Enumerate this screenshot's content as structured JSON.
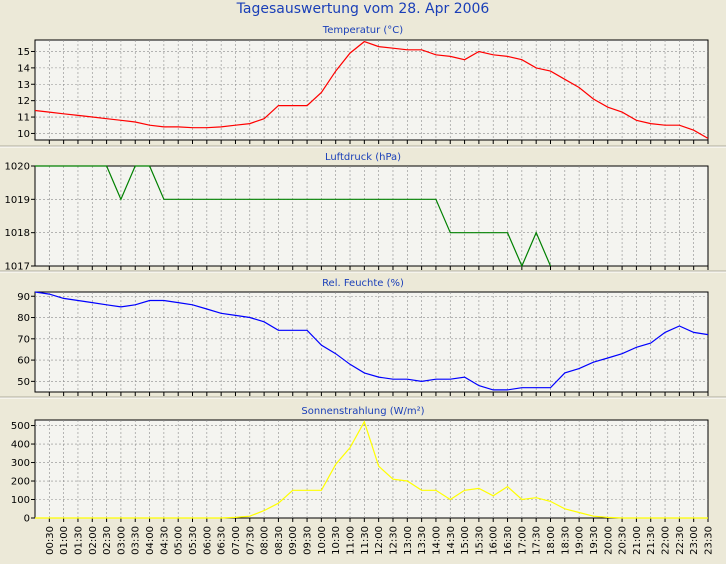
{
  "page": {
    "title": "Tagesauswertung vom 28. Apr 2006"
  },
  "colors": {
    "background": "#ece9d8",
    "plot_background": "#f4f4f0",
    "grid": "#8c8c8c",
    "title_blue": "#1a3fb8",
    "temperature": "#ff0000",
    "pressure": "#008000",
    "humidity": "#0000ff",
    "radiation": "#ffff00"
  },
  "chart_data": [
    {
      "type": "line",
      "title": "Temperatur (°C)",
      "x_ticks": [
        "00:30",
        "01:00",
        "01:30",
        "02:00",
        "02:30",
        "03:00",
        "03:30",
        "04:00",
        "04:30",
        "05:00",
        "05:30",
        "06:00",
        "06:30",
        "07:00",
        "07:30",
        "08:00",
        "08:30",
        "09:00",
        "09:30",
        "10:00",
        "10:30",
        "11:00",
        "11:30",
        "12:00",
        "12:30",
        "13:00",
        "13:30",
        "14:00",
        "14:30",
        "15:00",
        "15:30",
        "16:00",
        "16:30",
        "17:00",
        "17:30",
        "18:00",
        "18:30",
        "19:00",
        "19:30",
        "20:00",
        "20:30",
        "21:00",
        "21:30",
        "22:00",
        "22:30",
        "23:00",
        "23:30"
      ],
      "ylim": [
        9.6,
        15.7
      ],
      "y_ticks": [
        "10",
        "11",
        "12",
        "13",
        "14",
        "15"
      ],
      "series": [
        {
          "color": "#ff0000",
          "values": [
            11.4,
            11.3,
            11.2,
            11.1,
            11.0,
            10.9,
            10.8,
            10.7,
            10.5,
            10.4,
            10.4,
            10.35,
            10.35,
            10.4,
            10.5,
            10.6,
            10.9,
            11.7,
            11.7,
            11.7,
            12.5,
            13.8,
            14.9,
            15.6,
            15.3,
            15.2,
            15.1,
            15.1,
            14.8,
            14.7,
            14.5,
            15.0,
            14.8,
            14.7,
            14.5,
            14.0,
            13.8,
            13.3,
            12.8,
            12.1,
            11.6,
            11.3,
            10.8,
            10.6,
            10.5,
            10.5,
            10.2,
            9.7
          ]
        }
      ]
    },
    {
      "type": "line",
      "title": "Luftdruck (hPa)",
      "x_ticks": [
        "00:30",
        "01:00",
        "01:30",
        "02:00",
        "02:30",
        "03:00",
        "03:30",
        "04:00",
        "04:30",
        "05:00",
        "05:30",
        "06:00",
        "06:30",
        "07:00",
        "07:30",
        "08:00",
        "08:30",
        "09:00",
        "09:30",
        "10:00",
        "10:30",
        "11:00",
        "11:30",
        "12:00",
        "12:30",
        "13:00",
        "13:30",
        "14:00",
        "14:30",
        "15:00",
        "15:30",
        "16:00",
        "16:30",
        "17:00",
        "17:30",
        "18:00",
        "18:30",
        "19:00",
        "19:30",
        "20:00",
        "20:30",
        "21:00",
        "21:30",
        "22:00",
        "22:30",
        "23:00",
        "23:30"
      ],
      "ylim": [
        1017,
        1020
      ],
      "y_ticks": [
        "1017",
        "1018",
        "1019",
        "1020"
      ],
      "series": [
        {
          "color": "#008000",
          "values": [
            1020,
            1020,
            1020,
            1020,
            1020,
            1020,
            1019,
            1020,
            1020,
            1019,
            1019,
            1019,
            1019,
            1019,
            1019,
            1019,
            1019,
            1019,
            1019,
            1019,
            1019,
            1019,
            1019,
            1019,
            1019,
            1019,
            1019,
            1019,
            1019,
            1018,
            1018,
            1018,
            1018,
            1018,
            1017,
            1018,
            1017,
            null,
            null,
            null,
            null,
            null,
            null,
            null,
            null,
            null,
            null,
            null
          ]
        }
      ]
    },
    {
      "type": "line",
      "title": "Rel. Feuchte (%)",
      "x_ticks": [
        "00:30",
        "01:00",
        "01:30",
        "02:00",
        "02:30",
        "03:00",
        "03:30",
        "04:00",
        "04:30",
        "05:00",
        "05:30",
        "06:00",
        "06:30",
        "07:00",
        "07:30",
        "08:00",
        "08:30",
        "09:00",
        "09:30",
        "10:00",
        "10:30",
        "11:00",
        "11:30",
        "12:00",
        "12:30",
        "13:00",
        "13:30",
        "14:00",
        "14:30",
        "15:00",
        "15:30",
        "16:00",
        "16:30",
        "17:00",
        "17:30",
        "18:00",
        "18:30",
        "19:00",
        "19:30",
        "20:00",
        "20:30",
        "21:00",
        "21:30",
        "22:00",
        "22:30",
        "23:00",
        "23:30"
      ],
      "ylim": [
        45,
        92
      ],
      "y_ticks": [
        "50",
        "60",
        "70",
        "80",
        "90"
      ],
      "series": [
        {
          "color": "#0000ff",
          "values": [
            92,
            91,
            89,
            88,
            87,
            86,
            85,
            86,
            88,
            88,
            87,
            86,
            84,
            82,
            81,
            80,
            78,
            74,
            74,
            74,
            67,
            63,
            58,
            54,
            52,
            51,
            51,
            50,
            51,
            51,
            52,
            48,
            46,
            46,
            47,
            47,
            47,
            54,
            56,
            59,
            61,
            63,
            66,
            68,
            73,
            76,
            73,
            72
          ]
        }
      ]
    },
    {
      "type": "line",
      "title": "Sonnenstrahlung (W/m²)",
      "x_ticks": [
        "00:30",
        "01:00",
        "01:30",
        "02:00",
        "02:30",
        "03:00",
        "03:30",
        "04:00",
        "04:30",
        "05:00",
        "05:30",
        "06:00",
        "06:30",
        "07:00",
        "07:30",
        "08:00",
        "08:30",
        "09:00",
        "09:30",
        "10:00",
        "10:30",
        "11:00",
        "11:30",
        "12:00",
        "12:30",
        "13:00",
        "13:30",
        "14:00",
        "14:30",
        "15:00",
        "15:30",
        "16:00",
        "16:30",
        "17:00",
        "17:30",
        "18:00",
        "18:30",
        "19:00",
        "19:30",
        "20:00",
        "20:30",
        "21:00",
        "21:30",
        "22:00",
        "22:30",
        "23:00",
        "23:30"
      ],
      "ylim": [
        0,
        530
      ],
      "y_ticks": [
        "0",
        "100",
        "200",
        "300",
        "400",
        "500"
      ],
      "series": [
        {
          "color": "#ffff00",
          "values": [
            0,
            0,
            0,
            0,
            0,
            0,
            0,
            0,
            0,
            0,
            0,
            0,
            0,
            0,
            3,
            10,
            40,
            80,
            150,
            150,
            150,
            290,
            380,
            520,
            280,
            210,
            200,
            150,
            150,
            100,
            150,
            160,
            120,
            170,
            100,
            110,
            90,
            50,
            30,
            10,
            3,
            0,
            0,
            0,
            0,
            0,
            0,
            0
          ]
        }
      ]
    }
  ]
}
